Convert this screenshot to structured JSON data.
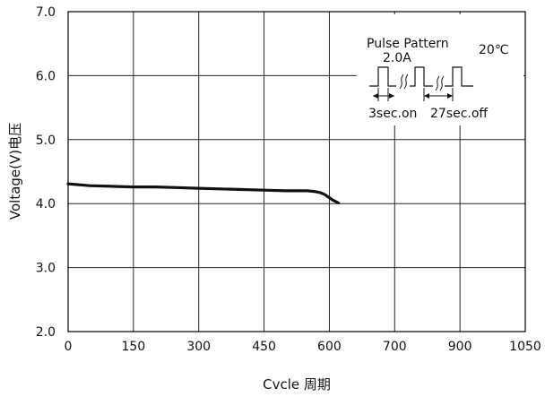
{
  "chart_data": {
    "type": "line",
    "title": "",
    "xlabel": "Cvcle 周期",
    "ylabel": "Voltage(V)电压",
    "x_ticks": [
      "0",
      "150",
      "300",
      "450",
      "600",
      "700",
      "900",
      "1050"
    ],
    "y_ticks": [
      "2.0",
      "3.0",
      "4.0",
      "5.0",
      "6.0",
      "7.0"
    ],
    "ylim": [
      2.0,
      7.0
    ],
    "grid": true,
    "series": [
      {
        "x": [
          0,
          50,
          100,
          150,
          200,
          250,
          300,
          350,
          400,
          450,
          500,
          550,
          565,
          580,
          590,
          598,
          606,
          614
        ],
        "y": [
          4.31,
          4.28,
          4.27,
          4.26,
          4.26,
          4.25,
          4.24,
          4.23,
          4.22,
          4.21,
          4.2,
          4.2,
          4.19,
          4.17,
          4.14,
          4.1,
          4.05,
          4.01
        ]
      }
    ],
    "legend": {
      "line1": "Pulse  Pattern",
      "line2": "2.0A",
      "temp": "20℃",
      "on_label": "3sec.on",
      "off_label": "27sec.off",
      "placement": "top-right"
    }
  }
}
